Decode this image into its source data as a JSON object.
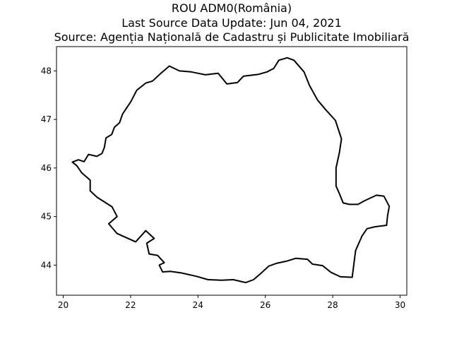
{
  "titles": [
    "ROU ADM0(România)",
    "Last Source Data Update: Jun 04, 2021",
    "Source: Agenția Națională de Cadastru și Publicitate Imobiliară"
  ],
  "chart_data": {
    "type": "map",
    "xlim": [
      19.8,
      30.2
    ],
    "ylim": [
      43.38,
      48.5
    ],
    "x_ticks": [
      20,
      22,
      24,
      26,
      28,
      30
    ],
    "y_ticks": [
      44,
      45,
      46,
      47,
      48
    ],
    "grid": false,
    "boundary_color": "#000000",
    "boundary": [
      [
        20.27,
        46.12
      ],
      [
        20.45,
        46.17
      ],
      [
        20.62,
        46.13
      ],
      [
        20.75,
        46.28
      ],
      [
        21.0,
        46.24
      ],
      [
        21.15,
        46.3
      ],
      [
        21.22,
        46.42
      ],
      [
        21.27,
        46.62
      ],
      [
        21.44,
        46.69
      ],
      [
        21.52,
        46.84
      ],
      [
        21.67,
        46.93
      ],
      [
        21.76,
        47.11
      ],
      [
        22.01,
        47.37
      ],
      [
        22.18,
        47.6
      ],
      [
        22.45,
        47.75
      ],
      [
        22.65,
        47.79
      ],
      [
        22.9,
        47.95
      ],
      [
        23.15,
        48.1
      ],
      [
        23.45,
        48.0
      ],
      [
        23.8,
        47.98
      ],
      [
        24.22,
        47.92
      ],
      [
        24.6,
        47.95
      ],
      [
        24.86,
        47.73
      ],
      [
        25.17,
        47.76
      ],
      [
        25.35,
        47.89
      ],
      [
        25.8,
        47.93
      ],
      [
        26.05,
        47.98
      ],
      [
        26.25,
        48.05
      ],
      [
        26.4,
        48.22
      ],
      [
        26.65,
        48.27
      ],
      [
        26.85,
        48.22
      ],
      [
        27.15,
        47.98
      ],
      [
        27.31,
        47.7
      ],
      [
        27.55,
        47.4
      ],
      [
        27.78,
        47.21
      ],
      [
        28.08,
        46.98
      ],
      [
        28.26,
        46.6
      ],
      [
        28.2,
        46.32
      ],
      [
        28.1,
        46.0
      ],
      [
        28.1,
        45.63
      ],
      [
        28.2,
        45.47
      ],
      [
        28.31,
        45.28
      ],
      [
        28.5,
        45.25
      ],
      [
        28.75,
        45.25
      ],
      [
        28.96,
        45.33
      ],
      [
        29.3,
        45.44
      ],
      [
        29.52,
        45.42
      ],
      [
        29.68,
        45.21
      ],
      [
        29.63,
        45.02
      ],
      [
        29.6,
        44.82
      ],
      [
        29.25,
        44.79
      ],
      [
        29.02,
        44.75
      ],
      [
        28.87,
        44.6
      ],
      [
        28.68,
        44.3
      ],
      [
        28.58,
        43.75
      ],
      [
        28.23,
        43.76
      ],
      [
        27.95,
        43.85
      ],
      [
        27.7,
        43.99
      ],
      [
        27.4,
        44.02
      ],
      [
        27.25,
        44.12
      ],
      [
        26.9,
        44.14
      ],
      [
        26.62,
        44.08
      ],
      [
        26.35,
        44.04
      ],
      [
        26.1,
        43.98
      ],
      [
        25.9,
        43.85
      ],
      [
        25.65,
        43.7
      ],
      [
        25.42,
        43.64
      ],
      [
        25.05,
        43.7
      ],
      [
        24.7,
        43.69
      ],
      [
        24.3,
        43.7
      ],
      [
        23.95,
        43.77
      ],
      [
        23.5,
        43.84
      ],
      [
        23.18,
        43.87
      ],
      [
        22.95,
        43.86
      ],
      [
        22.85,
        44.0
      ],
      [
        23.0,
        44.05
      ],
      [
        22.8,
        44.2
      ],
      [
        22.55,
        44.23
      ],
      [
        22.48,
        44.45
      ],
      [
        22.7,
        44.55
      ],
      [
        22.56,
        44.64
      ],
      [
        22.45,
        44.71
      ],
      [
        22.15,
        44.48
      ],
      [
        21.6,
        44.65
      ],
      [
        21.35,
        44.85
      ],
      [
        21.6,
        45.0
      ],
      [
        21.45,
        45.2
      ],
      [
        21.0,
        45.4
      ],
      [
        20.8,
        45.53
      ],
      [
        20.8,
        45.75
      ],
      [
        20.55,
        45.9
      ],
      [
        20.4,
        46.05
      ],
      [
        20.27,
        46.12
      ]
    ]
  }
}
